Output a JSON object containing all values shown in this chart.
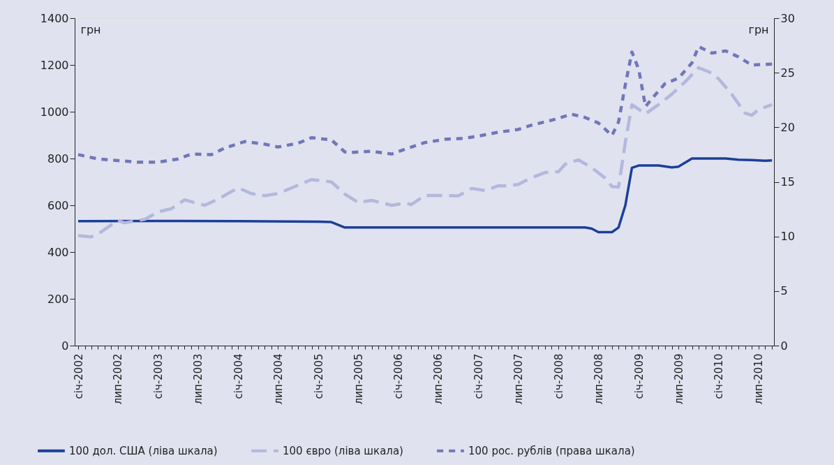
{
  "chart_data": {
    "type": "line",
    "ylabel": "грн",
    "y2label": "грн",
    "legend": "bottom",
    "xlim": [
      "2001-12-16",
      "2010-09-10"
    ],
    "ylim": [
      0,
      1400
    ],
    "yticks": [
      0,
      200,
      400,
      600,
      800,
      1000,
      1200,
      1400
    ],
    "y2lim": [
      0,
      30
    ],
    "y2ticks": [
      0,
      5,
      10,
      15,
      20,
      25,
      30
    ],
    "xticks": [
      {
        "value": "2002-01",
        "label": "січ-2002"
      },
      {
        "value": "2002-02",
        "label": null
      },
      {
        "value": "2002-03",
        "label": null
      },
      {
        "value": "2002-04",
        "label": null
      },
      {
        "value": "2002-05",
        "label": null
      },
      {
        "value": "2002-06",
        "label": null
      },
      {
        "value": "2002-07",
        "label": "лип-2002"
      },
      {
        "value": "2002-08",
        "label": null
      },
      {
        "value": "2002-09",
        "label": null
      },
      {
        "value": "2002-10",
        "label": null
      },
      {
        "value": "2002-11",
        "label": null
      },
      {
        "value": "2002-12",
        "label": null
      },
      {
        "value": "2003-01",
        "label": "січ-2003"
      },
      {
        "value": "2003-02",
        "label": null
      },
      {
        "value": "2003-03",
        "label": null
      },
      {
        "value": "2003-04",
        "label": null
      },
      {
        "value": "2003-05",
        "label": null
      },
      {
        "value": "2003-06",
        "label": null
      },
      {
        "value": "2003-07",
        "label": "лип-2003"
      },
      {
        "value": "2003-08",
        "label": null
      },
      {
        "value": "2003-09",
        "label": null
      },
      {
        "value": "2003-10",
        "label": null
      },
      {
        "value": "2003-11",
        "label": null
      },
      {
        "value": "2003-12",
        "label": null
      },
      {
        "value": "2004-01",
        "label": "січ-2004"
      },
      {
        "value": "2004-02",
        "label": null
      },
      {
        "value": "2004-03",
        "label": null
      },
      {
        "value": "2004-04",
        "label": null
      },
      {
        "value": "2004-05",
        "label": null
      },
      {
        "value": "2004-06",
        "label": null
      },
      {
        "value": "2004-07",
        "label": "лип-2004"
      },
      {
        "value": "2004-08",
        "label": null
      },
      {
        "value": "2004-09",
        "label": null
      },
      {
        "value": "2004-10",
        "label": null
      },
      {
        "value": "2004-11",
        "label": null
      },
      {
        "value": "2004-12",
        "label": null
      },
      {
        "value": "2005-01",
        "label": "січ-2005"
      },
      {
        "value": "2005-02",
        "label": null
      },
      {
        "value": "2005-03",
        "label": null
      },
      {
        "value": "2005-04",
        "label": null
      },
      {
        "value": "2005-05",
        "label": null
      },
      {
        "value": "2005-06",
        "label": null
      },
      {
        "value": "2005-07",
        "label": "лип-2005"
      },
      {
        "value": "2005-08",
        "label": null
      },
      {
        "value": "2005-09",
        "label": null
      },
      {
        "value": "2005-10",
        "label": null
      },
      {
        "value": "2005-11",
        "label": null
      },
      {
        "value": "2005-12",
        "label": null
      },
      {
        "value": "2006-01",
        "label": "січ-2006"
      },
      {
        "value": "2006-02",
        "label": null
      },
      {
        "value": "2006-03",
        "label": null
      },
      {
        "value": "2006-04",
        "label": null
      },
      {
        "value": "2006-05",
        "label": null
      },
      {
        "value": "2006-06",
        "label": null
      },
      {
        "value": "2006-07",
        "label": "лип-2006"
      },
      {
        "value": "2006-08",
        "label": null
      },
      {
        "value": "2006-09",
        "label": null
      },
      {
        "value": "2006-10",
        "label": null
      },
      {
        "value": "2006-11",
        "label": null
      },
      {
        "value": "2006-12",
        "label": null
      },
      {
        "value": "2007-01",
        "label": "січ-2007"
      },
      {
        "value": "2007-02",
        "label": null
      },
      {
        "value": "2007-03",
        "label": null
      },
      {
        "value": "2007-04",
        "label": null
      },
      {
        "value": "2007-05",
        "label": null
      },
      {
        "value": "2007-06",
        "label": null
      },
      {
        "value": "2007-07",
        "label": "лип-2007"
      },
      {
        "value": "2007-08",
        "label": null
      },
      {
        "value": "2007-09",
        "label": null
      },
      {
        "value": "2007-10",
        "label": null
      },
      {
        "value": "2007-11",
        "label": null
      },
      {
        "value": "2007-12",
        "label": null
      },
      {
        "value": "2008-01",
        "label": "січ-2008"
      },
      {
        "value": "2008-02",
        "label": null
      },
      {
        "value": "2008-03",
        "label": null
      },
      {
        "value": "2008-04",
        "label": null
      },
      {
        "value": "2008-05",
        "label": null
      },
      {
        "value": "2008-06",
        "label": null
      },
      {
        "value": "2008-07",
        "label": "лип-2008"
      },
      {
        "value": "2008-08",
        "label": null
      },
      {
        "value": "2008-09",
        "label": null
      },
      {
        "value": "2008-10",
        "label": null
      },
      {
        "value": "2008-11",
        "label": null
      },
      {
        "value": "2008-12",
        "label": null
      },
      {
        "value": "2009-01",
        "label": "січ-2009"
      },
      {
        "value": "2009-02",
        "label": null
      },
      {
        "value": "2009-03",
        "label": null
      },
      {
        "value": "2009-04",
        "label": null
      },
      {
        "value": "2009-05",
        "label": null
      },
      {
        "value": "2009-06",
        "label": null
      },
      {
        "value": "2009-07",
        "label": "лип-2009"
      },
      {
        "value": "2009-08",
        "label": null
      },
      {
        "value": "2009-09",
        "label": null
      },
      {
        "value": "2009-10",
        "label": null
      },
      {
        "value": "2009-11",
        "label": null
      },
      {
        "value": "2009-12",
        "label": null
      },
      {
        "value": "2010-01",
        "label": "січ-2010"
      },
      {
        "value": "2010-02",
        "label": null
      },
      {
        "value": "2010-03",
        "label": null
      },
      {
        "value": "2010-04",
        "label": null
      },
      {
        "value": "2010-05",
        "label": null
      },
      {
        "value": "2010-06",
        "label": null
      },
      {
        "value": "2010-07",
        "label": "лип-2010"
      },
      {
        "value": "2010-08",
        "label": null
      },
      {
        "value": "2010-09",
        "label": null
      }
    ],
    "series": [
      {
        "name": "100 дол. США (ліва шкала)",
        "color": "#1b3f98",
        "line_style": "solid",
        "x": [
          "2002-01",
          "2003-01",
          "2004-01",
          "2005-01",
          "2005-03",
          "2005-05",
          "2008-05",
          "2008-06",
          "2008-07",
          "2008-09",
          "2008-10",
          "2008-11",
          "2008-12",
          "2009-01",
          "2009-04",
          "2009-06",
          "2009-07",
          "2009-09",
          "2009-12",
          "2010-02",
          "2010-04",
          "2010-06",
          "2010-08",
          "2010-09"
        ],
        "values": [
          532,
          533,
          532,
          530,
          528,
          505,
          505,
          500,
          485,
          485,
          505,
          600,
          760,
          770,
          770,
          762,
          765,
          800,
          800,
          800,
          795,
          793,
          790,
          792
        ]
      },
      {
        "name": "100 євро (ліва шкала)",
        "color": "#b3b8dc",
        "line_style": "dashed",
        "x": [
          "2002-01",
          "2002-03",
          "2002-04",
          "2002-07",
          "2002-08",
          "2002-11",
          "2003-01",
          "2003-03",
          "2003-05",
          "2003-08",
          "2003-10",
          "2004-01",
          "2004-03",
          "2004-05",
          "2004-07",
          "2004-12",
          "2005-03",
          "2005-05",
          "2005-07",
          "2005-09",
          "2005-12",
          "2006-02",
          "2006-03",
          "2006-05",
          "2006-08",
          "2006-10",
          "2006-12",
          "2007-02",
          "2007-04",
          "2007-05",
          "2007-07",
          "2007-09",
          "2007-11",
          "2008-01",
          "2008-02",
          "2008-04",
          "2008-06",
          "2008-08",
          "2008-09",
          "2008-10",
          "2008-11",
          "2008-12",
          "2009-02",
          "2009-04",
          "2009-06",
          "2009-08",
          "2009-10",
          "2009-12",
          "2010-01",
          "2010-03",
          "2010-05",
          "2010-06",
          "2010-07",
          "2010-09"
        ],
        "values": [
          470,
          465,
          477,
          535,
          525,
          540,
          572,
          585,
          623,
          600,
          626,
          675,
          650,
          641,
          650,
          710,
          700,
          648,
          612,
          621,
          600,
          609,
          603,
          642,
          642,
          640,
          672,
          663,
          683,
          683,
          689,
          718,
          740,
          743,
          776,
          794,
          761,
          716,
          680,
          678,
          870,
          1030,
          991,
          1030,
          1075,
          1128,
          1188,
          1165,
          1140,
          1075,
          994,
          985,
          1009,
          1030
        ]
      },
      {
        "name": "100 рос. рублів (права шкала)",
        "color": "#7077b8",
        "line_style": "dotted",
        "axis": "y2",
        "x": [
          "2002-01",
          "2002-04",
          "2002-07",
          "2002-10",
          "2003-01",
          "2003-04",
          "2003-06",
          "2003-09",
          "2003-11",
          "2004-02",
          "2004-05",
          "2004-07",
          "2004-10",
          "2004-12",
          "2005-03",
          "2005-05",
          "2005-06",
          "2005-09",
          "2005-12",
          "2006-02",
          "2006-05",
          "2006-08",
          "2006-11",
          "2007-01",
          "2007-04",
          "2007-07",
          "2007-09",
          "2007-12",
          "2008-03",
          "2008-05",
          "2008-07",
          "2008-09",
          "2008-10",
          "2008-11",
          "2008-12",
          "2009-01",
          "2009-02",
          "2009-03",
          "2009-05",
          "2009-07",
          "2009-09",
          "2009-10",
          "2009-12",
          "2010-02",
          "2010-04",
          "2010-06",
          "2010-09"
        ],
        "values": [
          17.5,
          17.1,
          16.95,
          16.8,
          16.8,
          17.1,
          17.55,
          17.5,
          18.1,
          18.7,
          18.45,
          18.2,
          18.55,
          19.05,
          18.85,
          17.75,
          17.7,
          17.8,
          17.55,
          18.0,
          18.6,
          18.9,
          19.0,
          19.2,
          19.55,
          19.8,
          20.2,
          20.65,
          21.2,
          20.9,
          20.4,
          19.25,
          20.5,
          23.9,
          26.9,
          25.3,
          21.9,
          22.6,
          24.0,
          24.5,
          25.9,
          27.4,
          26.8,
          27.0,
          26.45,
          25.7,
          25.8
        ]
      }
    ]
  }
}
